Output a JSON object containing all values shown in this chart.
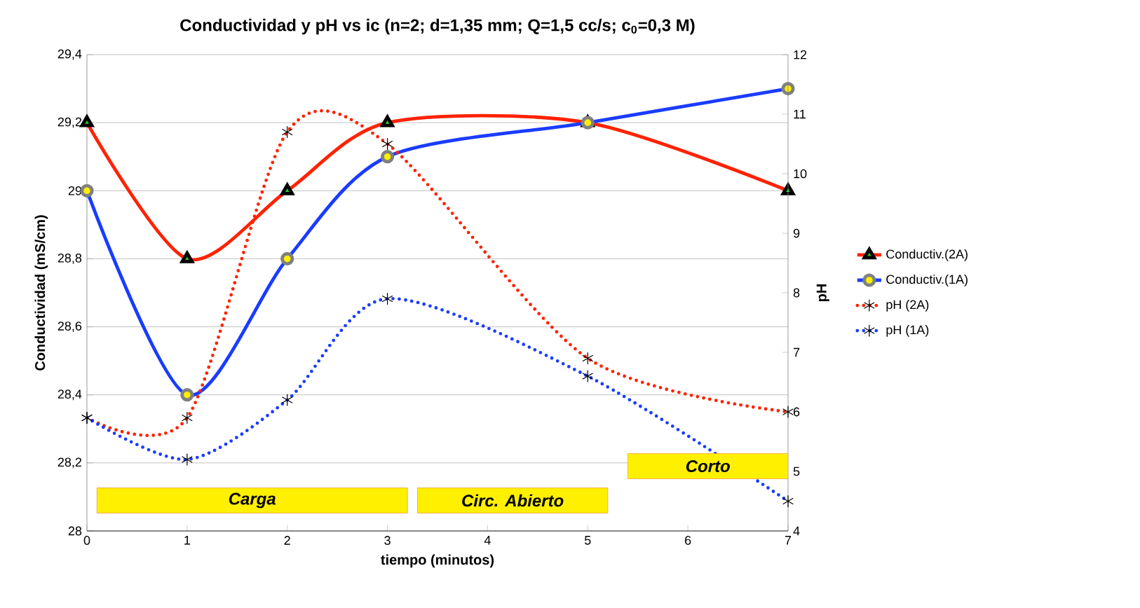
{
  "chart_data": {
    "type": "line",
    "title": "Conductividad y pH vs ic (n=2; d=1,35 mm; Q=1,5 cc/s; c$_{0}$=0,3 M)",
    "xlabel": "tiempo (minutos)",
    "ylabel": "Conductividad (mS/cm)",
    "y2label": "pH",
    "x": [
      0,
      1,
      2,
      3,
      5,
      7
    ],
    "xlim": [
      0,
      7
    ],
    "xticks": [
      0,
      1,
      2,
      3,
      4,
      5,
      6,
      7
    ],
    "ylim": [
      28,
      29.4
    ],
    "yticks": [
      28,
      {
        "value": 28.2,
        "label": "28,2"
      },
      {
        "value": 28.4,
        "label": "28,4"
      },
      {
        "value": 28.6,
        "label": "28,6"
      },
      {
        "value": 28.8,
        "label": "28,8"
      },
      29,
      {
        "value": 29.2,
        "label": "29,2"
      },
      {
        "value": 29.4,
        "label": "29,4"
      }
    ],
    "y2lim": [
      4,
      12
    ],
    "y2ticks": [
      4,
      5,
      6,
      7,
      8,
      9,
      10,
      11,
      12
    ],
    "grid": "y",
    "legend": "right",
    "series": [
      {
        "name": "Conductiv.(2A)",
        "color": "#ff2200",
        "values": [
          29.2,
          28.8,
          29.0,
          29.2,
          29.2,
          29.0
        ],
        "marker": "triangle",
        "line_style": "solid"
      },
      {
        "name": "Conductiv.(1A)",
        "color": "#1a3cff",
        "values": [
          29.0,
          28.4,
          28.8,
          29.1,
          29.2,
          29.3
        ],
        "marker": "circle",
        "line_style": "solid"
      },
      {
        "name": "pH (2A)",
        "color": "#ff2200",
        "values": [
          5.9,
          5.9,
          10.7,
          10.5,
          6.9,
          6.0
        ],
        "marker": "cross",
        "line_style": "dotted",
        "axis": "y2"
      },
      {
        "name": "pH (1A)",
        "color": "#1a3cff",
        "values": [
          5.9,
          5.2,
          6.2,
          7.9,
          6.6,
          4.5
        ],
        "marker": "cross",
        "line_style": "dotted",
        "axis": "y2"
      }
    ],
    "bands": [
      {
        "axis": "x",
        "from": 0.1,
        "to": 3.2,
        "label": "Carga",
        "color": "#fff000"
      },
      {
        "axis": "x",
        "from": 3.3,
        "to": 5.2,
        "label": "Circ. Abierto",
        "color": "#fff000"
      },
      {
        "axis": "x",
        "from": 5.4,
        "to": 7,
        "label": "Corto",
        "color": "#fff000"
      }
    ]
  }
}
